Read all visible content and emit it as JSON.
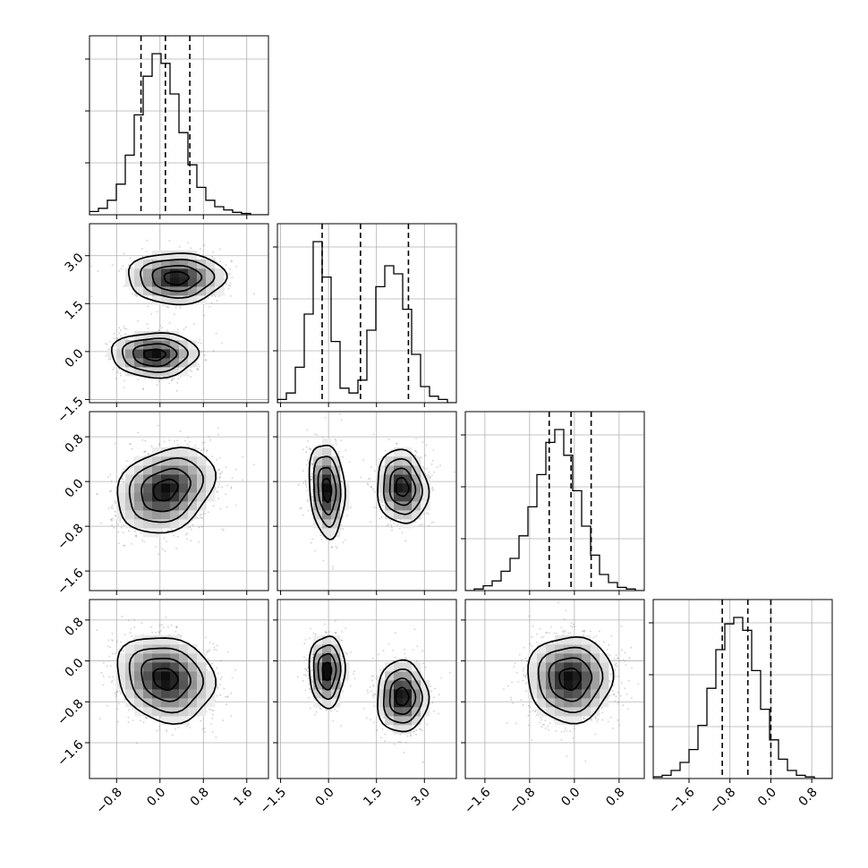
{
  "chart_data": {
    "type": "corner",
    "n_params": 4,
    "grid": true,
    "quantiles": [
      0.16,
      0.5,
      0.84
    ],
    "axes": [
      {
        "range": [
          -1.3,
          2.0
        ],
        "ticks": [
          -0.8,
          0.0,
          0.8,
          1.6
        ],
        "tick_labels": [
          "−0.8",
          "0.0",
          "0.8",
          "1.6"
        ]
      },
      {
        "range": [
          -1.6,
          4.0
        ],
        "ticks": [
          -1.5,
          0.0,
          1.5,
          3.0
        ],
        "tick_labels": [
          "−1.5",
          "0.0",
          "1.5",
          "3.0"
        ]
      },
      {
        "range": [
          -1.95,
          1.25
        ],
        "ticks": [
          -1.6,
          -0.8,
          0.0,
          0.8
        ],
        "tick_labels": [
          "−1.6",
          "−0.8",
          "0.0",
          "0.8"
        ]
      },
      {
        "range": [
          -2.3,
          1.2
        ],
        "ticks": [
          -1.6,
          -0.8,
          0.0,
          0.8
        ],
        "tick_labels": [
          "−1.6",
          "−0.8",
          "0.0",
          "0.8"
        ]
      }
    ],
    "histograms": [
      {
        "param": 0,
        "bins": 20,
        "counts": [
          0.02,
          0.04,
          0.09,
          0.19,
          0.37,
          0.62,
          0.86,
          1.0,
          0.94,
          0.75,
          0.51,
          0.31,
          0.17,
          0.09,
          0.05,
          0.03,
          0.015,
          0.008,
          0.0,
          0.0
        ],
        "quantile_values": [
          -0.35,
          0.1,
          0.55
        ]
      },
      {
        "param": 1,
        "bins": 20,
        "counts": [
          0.02,
          0.06,
          0.22,
          0.55,
          1.0,
          0.78,
          0.38,
          0.09,
          0.06,
          0.14,
          0.45,
          0.72,
          0.85,
          0.8,
          0.58,
          0.3,
          0.1,
          0.04,
          0.02,
          0.0
        ],
        "quantile_values": [
          -0.2,
          1.0,
          2.5
        ]
      },
      {
        "param": 2,
        "bins": 20,
        "counts": [
          0.0,
          0.01,
          0.03,
          0.06,
          0.12,
          0.2,
          0.34,
          0.52,
          0.72,
          0.92,
          1.0,
          0.84,
          0.62,
          0.4,
          0.22,
          0.1,
          0.05,
          0.02,
          0.01,
          0.0
        ],
        "quantile_values": [
          -0.45,
          -0.06,
          0.3
        ]
      },
      {
        "param": 3,
        "bins": 20,
        "counts": [
          0.01,
          0.02,
          0.05,
          0.1,
          0.18,
          0.33,
          0.56,
          0.8,
          0.96,
          1.0,
          0.92,
          0.67,
          0.43,
          0.24,
          0.12,
          0.05,
          0.02,
          0.01,
          0.0,
          0.0
        ],
        "quantile_values": [
          -0.95,
          -0.45,
          0.0
        ]
      }
    ],
    "joint_distributions": [
      {
        "x_param": 0,
        "y_param": 1,
        "components": [
          {
            "mean": [
              0.3,
              2.3
            ],
            "sd": [
              0.45,
              0.4
            ],
            "weight": 0.5,
            "rho": 0.0
          },
          {
            "mean": [
              -0.1,
              -0.1
            ],
            "sd": [
              0.4,
              0.35
            ],
            "weight": 0.5,
            "rho": 0.0
          }
        ]
      },
      {
        "x_param": 0,
        "y_param": 2,
        "components": [
          {
            "mean": [
              0.1,
              -0.15
            ],
            "sd": [
              0.45,
              0.38
            ],
            "weight": 1.0,
            "rho": 0.25
          }
        ]
      },
      {
        "x_param": 1,
        "y_param": 2,
        "components": [
          {
            "mean": [
              -0.05,
              -0.15
            ],
            "sd": [
              0.28,
              0.42
            ],
            "weight": 0.5,
            "rho": -0.15
          },
          {
            "mean": [
              2.3,
              -0.1
            ],
            "sd": [
              0.4,
              0.33
            ],
            "weight": 0.5,
            "rho": -0.1
          }
        ]
      },
      {
        "x_param": 0,
        "y_param": 3,
        "components": [
          {
            "mean": [
              0.1,
              -0.35
            ],
            "sd": [
              0.45,
              0.42
            ],
            "weight": 1.0,
            "rho": -0.15
          }
        ]
      },
      {
        "x_param": 1,
        "y_param": 3,
        "components": [
          {
            "mean": [
              -0.05,
              -0.2
            ],
            "sd": [
              0.28,
              0.35
            ],
            "weight": 0.5,
            "rho": 0.0
          },
          {
            "mean": [
              2.3,
              -0.7
            ],
            "sd": [
              0.4,
              0.35
            ],
            "weight": 0.5,
            "rho": 0.0
          }
        ]
      },
      {
        "x_param": 2,
        "y_param": 3,
        "components": [
          {
            "mean": [
              -0.08,
              -0.35
            ],
            "sd": [
              0.38,
              0.42
            ],
            "weight": 1.0,
            "rho": 0.0
          }
        ]
      }
    ],
    "contour_levels_sigma": [
      0.5,
      1.0,
      1.5,
      2.0
    ]
  }
}
